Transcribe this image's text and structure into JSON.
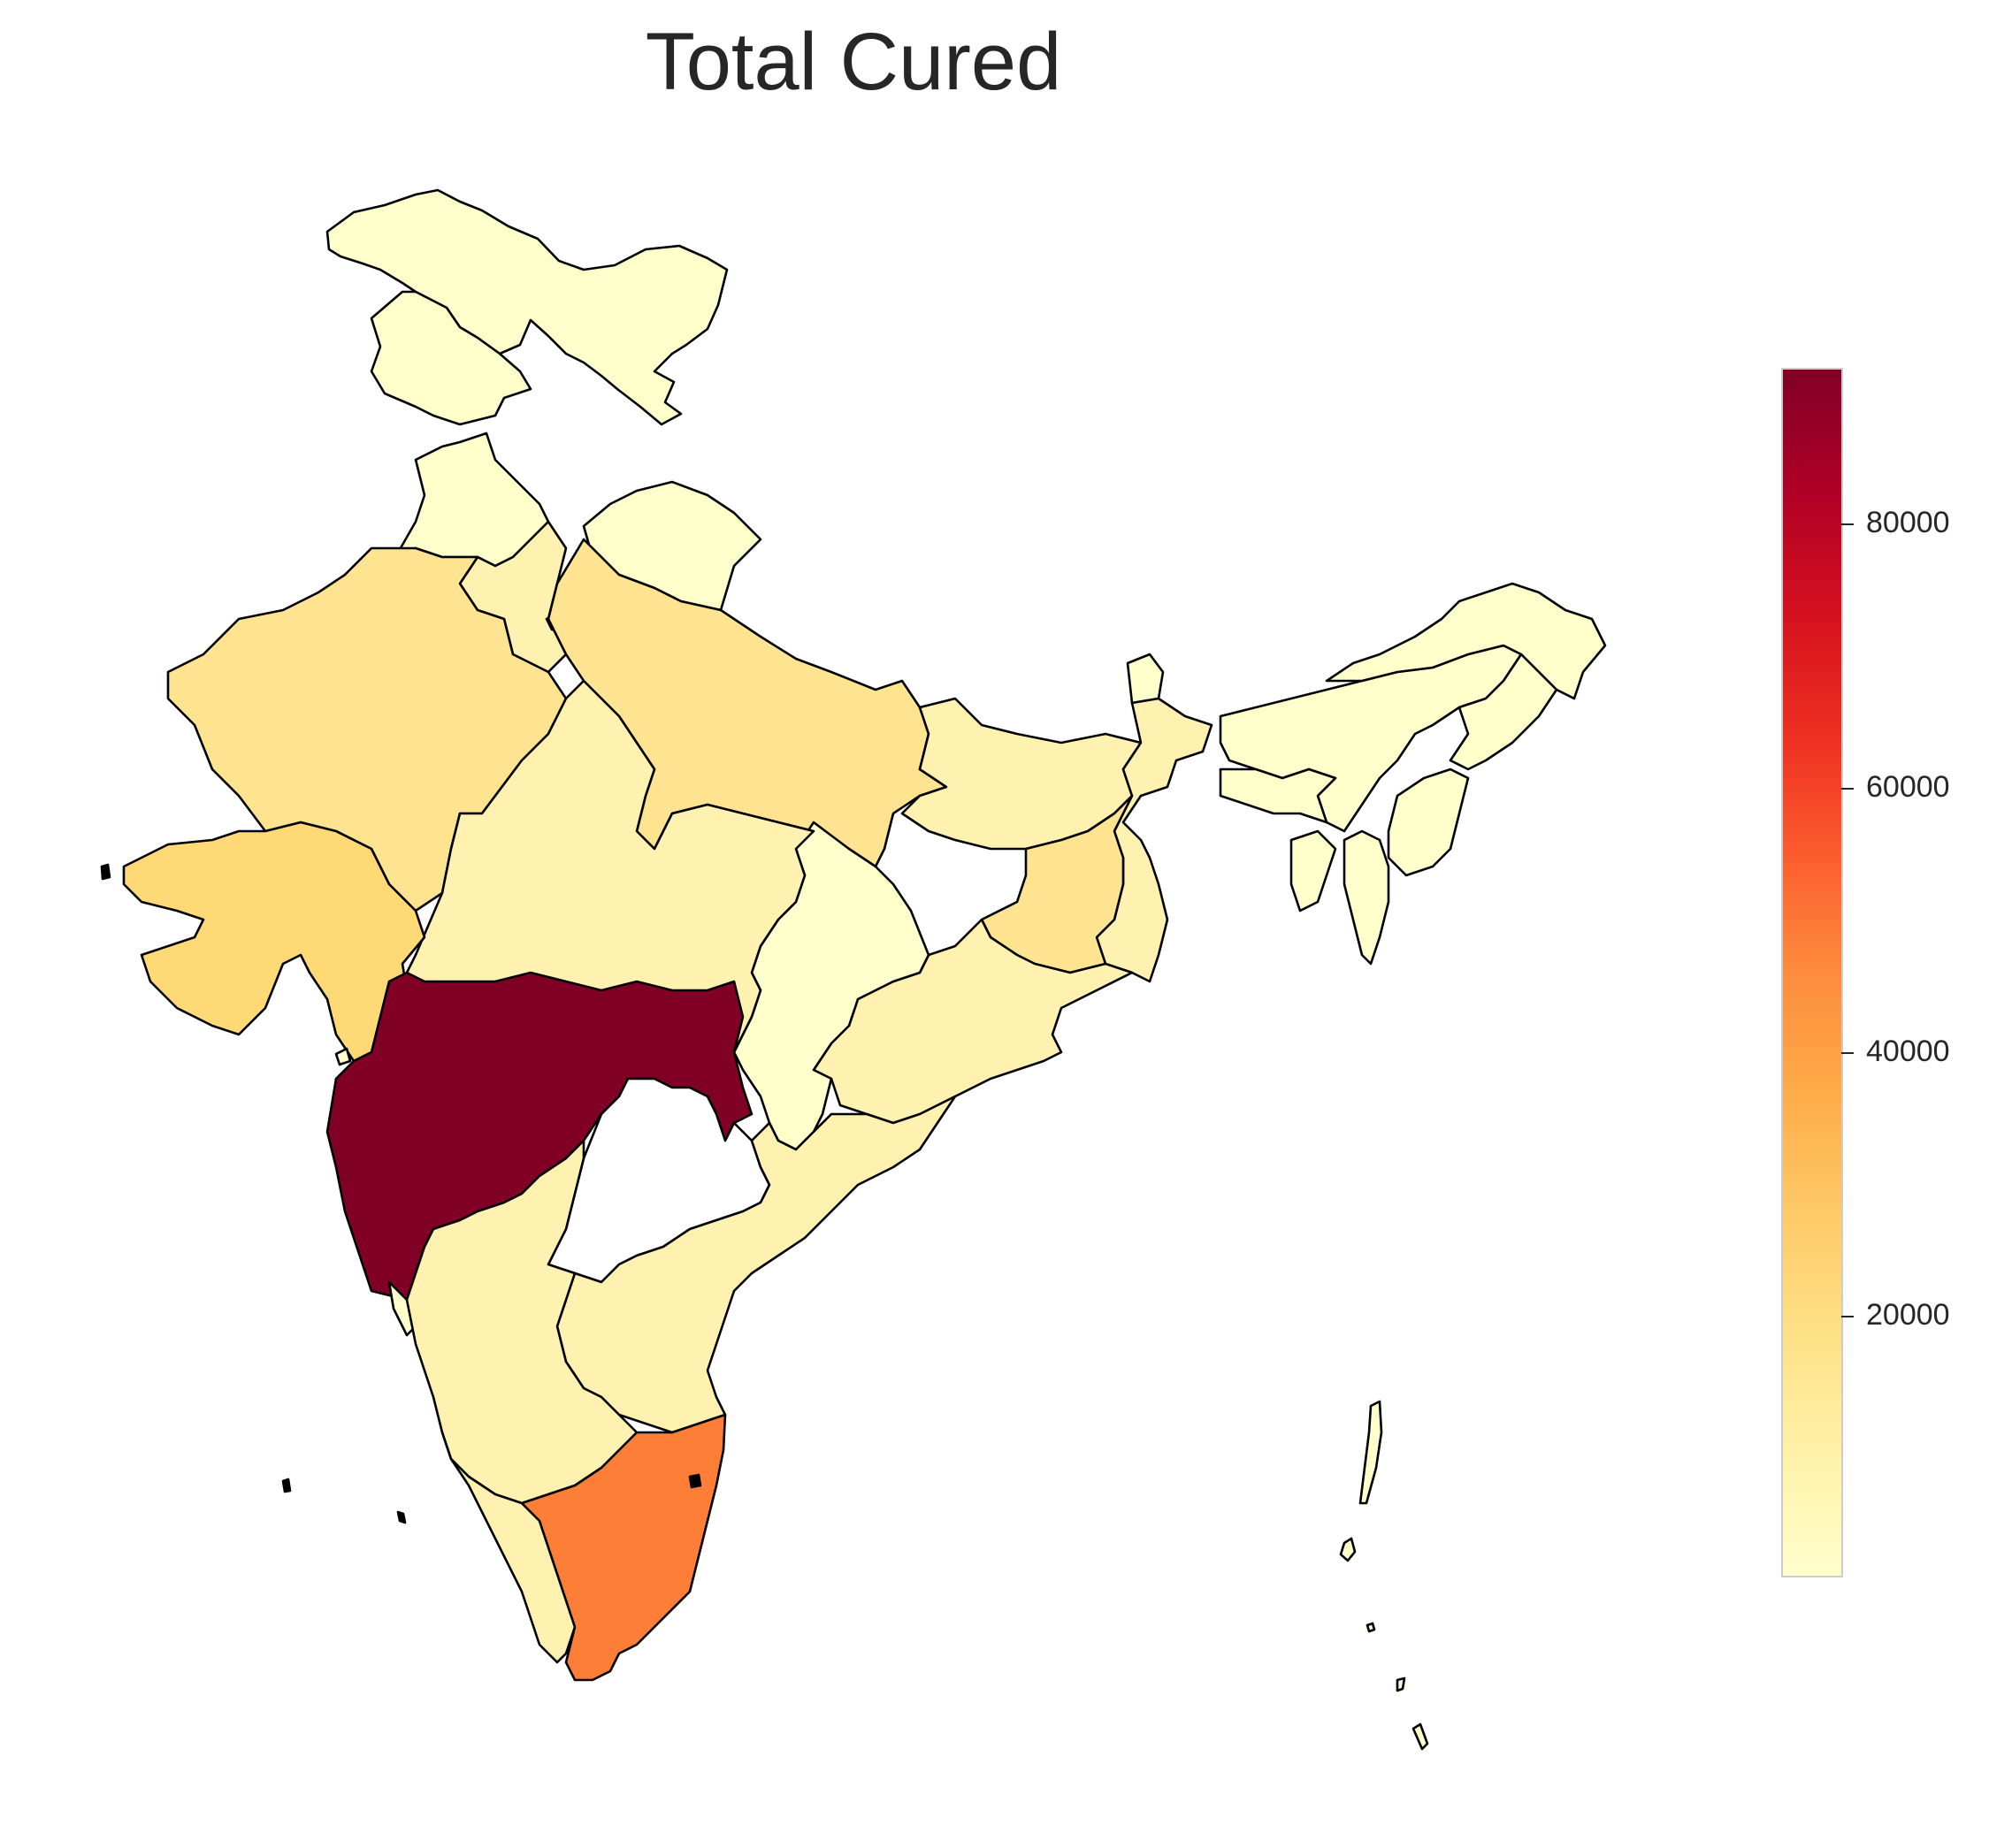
{
  "title": "Total Cured",
  "colorbar": {
    "colormap": "YlOrRd",
    "ticks": [
      {
        "label": "20000",
        "value": 20000
      },
      {
        "label": "40000",
        "value": 40000
      },
      {
        "label": "60000",
        "value": 60000
      },
      {
        "label": "80000",
        "value": 80000
      }
    ],
    "range": [
      700,
      90900
    ]
  },
  "colors": {
    "max": "#800026",
    "high": "#e31a1c",
    "mid": "#fd7f37",
    "low": "#fed976",
    "min": "#ffffcc"
  }
}
